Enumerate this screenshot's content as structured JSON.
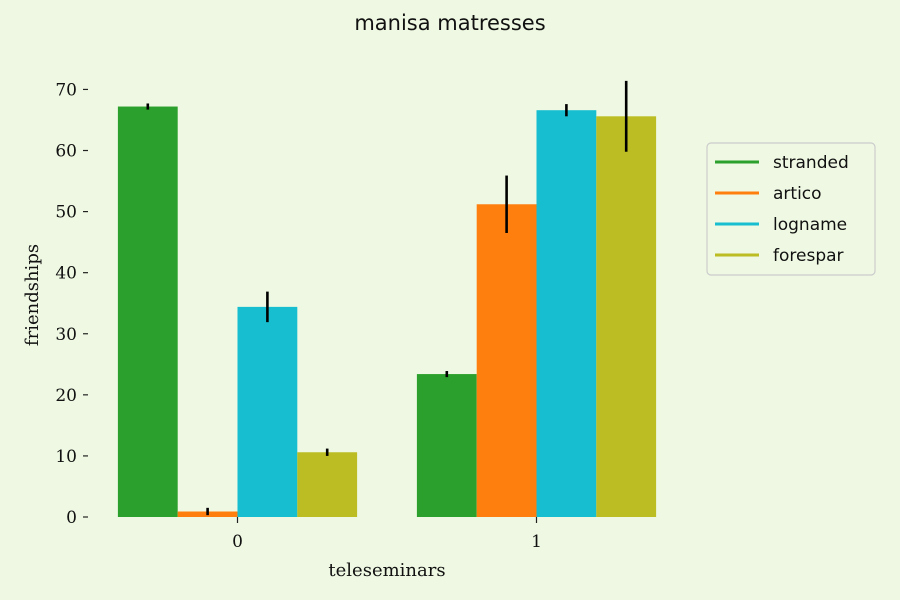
{
  "chart_data": {
    "type": "bar",
    "title": "manisa matresses",
    "xlabel": "teleseminars",
    "ylabel": "friendships",
    "categories": [
      "0",
      "1"
    ],
    "ylim": [
      0,
      74
    ],
    "yticks": [
      0,
      10,
      20,
      30,
      40,
      50,
      60,
      70
    ],
    "grid": false,
    "legend_position": "right",
    "error_bar_color": "#000000",
    "series": [
      {
        "name": "stranded",
        "color": "#2ca02c",
        "values": [
          67.2,
          23.4
        ],
        "errors": [
          0.5,
          0.5
        ]
      },
      {
        "name": "artico",
        "color": "#ff7f0e",
        "values": [
          0.9,
          51.2
        ],
        "errors": [
          0.6,
          4.7
        ]
      },
      {
        "name": "logname",
        "color": "#17becf",
        "values": [
          34.4,
          66.6
        ],
        "errors": [
          2.5,
          1.0
        ]
      },
      {
        "name": "forespar",
        "color": "#bcbd22",
        "values": [
          10.6,
          65.6
        ],
        "errors": [
          0.6,
          5.8
        ]
      }
    ]
  }
}
